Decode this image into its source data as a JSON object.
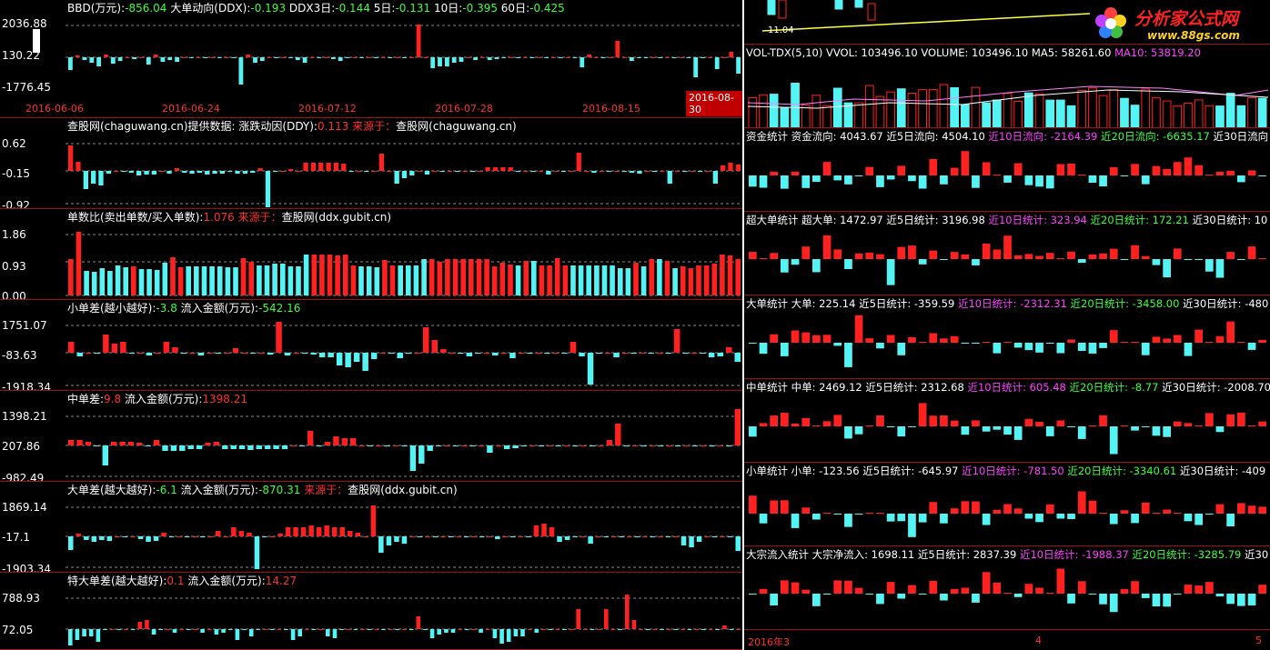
{
  "left_panels": [
    {
      "id": "bbd",
      "title": [
        [
          "BBD(万元):",
          "w"
        ],
        [
          "-856.04",
          "g"
        ],
        [
          "  大单动向(DDX):",
          "w"
        ],
        [
          "-0.193",
          "g"
        ],
        [
          "  DDX3日:",
          "w"
        ],
        [
          "-0.144",
          "g"
        ],
        [
          "  5日:",
          "w"
        ],
        [
          "-0.131",
          "g"
        ],
        [
          "  10日:",
          "w"
        ],
        [
          "-0.395",
          "g"
        ],
        [
          "  60日:",
          "w"
        ],
        [
          "-0.425",
          "g"
        ]
      ],
      "ylabels": [
        "2036.88",
        "130.22",
        "-1776.45"
      ],
      "values": [
        -14,
        2,
        -3,
        -6,
        -10,
        3,
        -7,
        -4,
        0,
        -2,
        0,
        -8,
        3,
        -5,
        -3,
        -5,
        0,
        0,
        0,
        0,
        0,
        0,
        0,
        0,
        -30,
        3,
        -6,
        -4,
        0,
        0,
        0,
        0,
        -3,
        -6,
        0,
        0,
        0,
        -2,
        -4,
        0,
        0,
        0,
        0,
        0,
        0,
        0,
        0,
        0,
        0,
        36,
        0,
        -12,
        -10,
        -10,
        -6,
        -5,
        0,
        -3,
        0,
        -3,
        -2,
        0,
        0,
        0,
        0,
        0,
        0,
        0,
        0,
        0,
        0,
        0,
        -11,
        3,
        0,
        0,
        0,
        18,
        0,
        -4,
        -1,
        0,
        0,
        0,
        0,
        0,
        0,
        0,
        -22,
        0,
        0,
        -13,
        0,
        6,
        -18
      ]
    },
    {
      "id": "ddy",
      "title": [
        [
          "查股网(chaguwang.cn)提供数据: 涨跌动因(DDY):",
          "w"
        ],
        [
          "0.113",
          "r"
        ],
        [
          "      来源于：",
          "r"
        ],
        [
          "查股网(chaguwang.cn)",
          "w"
        ]
      ],
      "ylabels": [
        "0.62",
        "-0.15",
        "-0.92"
      ],
      "values": [
        28,
        10,
        -20,
        -14,
        -16,
        -3,
        0,
        0,
        -2,
        -5,
        -4,
        -4,
        0,
        -3,
        3,
        -2,
        -3,
        -2,
        -4,
        -3,
        -3,
        0,
        -3,
        -3,
        -2,
        3,
        -40,
        0,
        0,
        2,
        0,
        9,
        9,
        9,
        9,
        9,
        8,
        0,
        0,
        0,
        0,
        19,
        0,
        -14,
        -8,
        -5,
        0,
        -4,
        0,
        0,
        0,
        0,
        0,
        0,
        0,
        4,
        4,
        4,
        4,
        0,
        0,
        0,
        0,
        -4,
        0,
        0,
        0,
        20,
        0,
        -2,
        0,
        0,
        0,
        0,
        -2,
        -3,
        0,
        0,
        0,
        -14,
        0,
        0,
        0,
        0,
        0,
        -14,
        6,
        9,
        7
      ]
    },
    {
      "id": "ratio",
      "title": [
        [
          "单数比(卖出单数/买入单数):",
          "w"
        ],
        [
          "1.076",
          "r"
        ],
        [
          "      来源于：",
          "r"
        ],
        [
          "查股网(ddx.gubit.cn)",
          "w"
        ]
      ],
      "ylabels": [
        "1.86",
        "0.93",
        "0.00"
      ],
      "values": [
        40,
        70,
        27,
        26,
        30,
        27,
        33,
        31,
        32,
        29,
        29,
        28,
        36,
        42,
        31,
        32,
        32,
        32,
        32,
        32,
        31,
        31,
        41,
        37,
        33,
        33,
        35,
        35,
        32,
        32,
        45,
        45,
        45,
        45,
        44,
        45,
        33,
        32,
        32,
        31,
        39,
        33,
        33,
        33,
        33,
        40,
        40,
        37,
        40,
        40,
        40,
        40,
        40,
        40,
        32,
        36,
        34,
        33,
        38,
        38,
        33,
        33,
        41,
        33,
        33,
        33,
        33,
        33,
        33,
        33,
        30,
        30,
        36,
        32,
        40,
        40,
        38,
        30,
        32,
        30,
        33,
        33,
        35,
        45,
        44,
        40
      ],
      "colors": "rrccccccrccccrrcccccccrrcccccccrrrrrrcccrrccccrrrrrrrrrrrcrcrrrrccccccccrcrcrcrrrrrrrr"
    },
    {
      "id": "small",
      "title": [
        [
          "小单差(越小越好):",
          "w"
        ],
        [
          "-3.8",
          "g"
        ],
        [
          "  流入金额(万元):",
          "w"
        ],
        [
          "-542.16",
          "g"
        ]
      ],
      "ylabels": [
        "1751.07",
        "-83.63",
        "-1918.34"
      ],
      "values": [
        12,
        -4,
        0,
        0,
        20,
        10,
        12,
        0,
        0,
        -3,
        0,
        12,
        6,
        0,
        0,
        -3,
        0,
        0,
        0,
        5,
        0,
        0,
        0,
        -2,
        34,
        -3,
        0,
        0,
        -2,
        -5,
        -5,
        -14,
        -16,
        -10,
        -20,
        -7,
        0,
        0,
        -6,
        0,
        0,
        28,
        14,
        4,
        0,
        0,
        -4,
        0,
        0,
        -3,
        0,
        -6,
        0,
        0,
        0,
        0,
        0,
        0,
        12,
        -4,
        -35,
        0,
        0,
        -5,
        0,
        0,
        0,
        0,
        0,
        0,
        26,
        0,
        0,
        0,
        -5,
        -4,
        6,
        -10
      ]
    },
    {
      "id": "mid",
      "title": [
        [
          "中单差:",
          "w"
        ],
        [
          "9.8",
          "r"
        ],
        [
          "  流入金额(万元):",
          "w"
        ],
        [
          "1398.21",
          "r"
        ]
      ],
      "ylabels": [
        "1398.21",
        "207.86",
        "-982.49"
      ],
      "values": [
        6,
        6,
        4,
        0,
        -22,
        4,
        4,
        4,
        3,
        0,
        6,
        -6,
        -6,
        -6,
        -4,
        -4,
        3,
        4,
        -4,
        -4,
        -4,
        -5,
        -4,
        -4,
        -4,
        -4,
        0,
        0,
        16,
        0,
        4,
        10,
        8,
        8,
        0,
        0,
        0,
        0,
        0,
        0,
        -28,
        -20,
        -6,
        0,
        0,
        0,
        0,
        0,
        0,
        -8,
        0,
        -4,
        -3,
        0,
        0,
        0,
        0,
        0,
        0,
        0,
        0,
        0,
        0,
        6,
        24,
        0,
        0,
        0,
        0,
        0,
        0,
        0,
        0,
        0,
        0,
        0,
        0,
        0,
        40
      ]
    },
    {
      "id": "big",
      "title": [
        [
          "大单差(越大越好):",
          "w"
        ],
        [
          "-6.1",
          "g"
        ],
        [
          "  流入金额(万元):",
          "w"
        ],
        [
          "-870.31",
          "g"
        ],
        [
          "      来源于：",
          "r"
        ],
        [
          "查股网(ddx.gubit.cn)",
          "w"
        ]
      ],
      "ylabels": [
        "1869.14",
        "-17.1",
        "-1903.34"
      ],
      "values": [
        -15,
        3,
        -4,
        -6,
        -4,
        -5,
        0,
        0,
        0,
        -3,
        -6,
        -5,
        4,
        0,
        0,
        0,
        0,
        0,
        0,
        6,
        0,
        10,
        6,
        4,
        -36,
        0,
        0,
        3,
        10,
        10,
        10,
        12,
        10,
        12,
        10,
        10,
        6,
        4,
        0,
        34,
        -18,
        -10,
        -6,
        -8,
        0,
        0,
        0,
        0,
        0,
        0,
        0,
        0,
        0,
        0,
        0,
        -3,
        0,
        0,
        0,
        0,
        12,
        14,
        10,
        -6,
        -4,
        0,
        0,
        -8,
        0,
        0,
        0,
        0,
        0,
        0,
        0,
        0,
        0,
        0,
        0,
        -10,
        -12,
        -6,
        0,
        0,
        0,
        0,
        -16
      ]
    },
    {
      "id": "huge",
      "title": [
        [
          "特大单差(越大越好):",
          "w"
        ],
        [
          "0.1",
          "r"
        ],
        [
          "  流入金额(万元):",
          "w"
        ],
        [
          "14.27",
          "r"
        ]
      ],
      "ylabels": [
        "788.93",
        "72.05"
      ],
      "values": [
        -18,
        -12,
        -8,
        -8,
        -14,
        0,
        0,
        0,
        0,
        0,
        8,
        10,
        -6,
        0,
        0,
        -4,
        0,
        0,
        0,
        -4,
        0,
        -6,
        -4,
        0,
        -12,
        0,
        -8,
        0,
        0,
        0,
        0,
        0,
        -12,
        -8,
        0,
        0,
        0,
        -8,
        -10,
        0,
        0,
        0,
        0,
        0,
        0,
        0,
        0,
        0,
        0,
        0,
        14,
        0,
        -10,
        -6,
        -4,
        -4,
        0,
        0,
        0,
        -4,
        0,
        -10,
        -16,
        -14,
        -8,
        -8,
        0,
        -4,
        0,
        0,
        0,
        0,
        0,
        22,
        0,
        0,
        0,
        22,
        0,
        0,
        38,
        10,
        0,
        0,
        0,
        0,
        0,
        0,
        0,
        0,
        0,
        0,
        0,
        0,
        4,
        0,
        0
      ]
    }
  ],
  "dates": [
    "2016-06-06",
    "2016-06-24",
    "2016-07-12",
    "2016-07-28",
    "2016-08-15"
  ],
  "date_box": "2016-08-30",
  "right_top": {
    "label": "11.04"
  },
  "right_panels": [
    {
      "id": "vol",
      "title": [
        [
          "VOL-TDX(5,10)  VVOL: 103496.10  VOLUME: 103496.10  MA5: 58261.60  ",
          "w"
        ],
        [
          "MA10: 53819.20",
          "m"
        ]
      ]
    },
    {
      "id": "fund",
      "title": [
        [
          "资金统计  资金流向: 4043.67  近5日流向: 4504.10  ",
          "w"
        ],
        [
          "近10日流向: -2164.39",
          "m"
        ],
        [
          "  近20日流向: -6635.17",
          "g"
        ],
        [
          "  近30日流向",
          "w"
        ]
      ]
    },
    {
      "id": "super",
      "title": [
        [
          "超大单统计  超大单: 1472.97   近5日统计: 3196.98  ",
          "w"
        ],
        [
          "近10日统计: 323.94",
          "m"
        ],
        [
          "  近20日统计: 172.21",
          "g"
        ],
        [
          "  近30日统计: 10",
          "w"
        ]
      ]
    },
    {
      "id": "large",
      "title": [
        [
          "大单统计  大单: 225.14   近5日统计: -359.59  ",
          "w"
        ],
        [
          "近10日统计: -2312.31",
          "m"
        ],
        [
          "  近20日统计: -3458.00",
          "g"
        ],
        [
          "  近30日统计: -480",
          "w"
        ]
      ]
    },
    {
      "id": "medium",
      "title": [
        [
          "中单统计  中单: 2469.12   近5日统计: 2312.68  ",
          "w"
        ],
        [
          "近10日统计: 605.48",
          "m"
        ],
        [
          "  近20日统计: -8.77",
          "g"
        ],
        [
          "  近30日统计: -2008.70",
          "w"
        ]
      ]
    },
    {
      "id": "smallr",
      "title": [
        [
          "小单统计  小单: -123.56   近5日统计: -645.97  ",
          "w"
        ],
        [
          "近10日统计: -781.50",
          "m"
        ],
        [
          "  近20日统计: -3340.61",
          "g"
        ],
        [
          "  近30日统计: -409",
          "w"
        ]
      ]
    },
    {
      "id": "block",
      "title": [
        [
          "大宗流入统计  大宗净流入: 1698.11   近5日统计: 2837.39  ",
          "w"
        ],
        [
          "近10日统计: -1988.37",
          "m"
        ],
        [
          "  近20日统计: -3285.79",
          "g"
        ],
        [
          "  近30日统计",
          "w"
        ]
      ]
    }
  ],
  "bottom_axis": [
    "2016年3",
    "4",
    "5"
  ],
  "logo": {
    "text": "分析家公式网",
    "url": "www.88gs.com"
  }
}
